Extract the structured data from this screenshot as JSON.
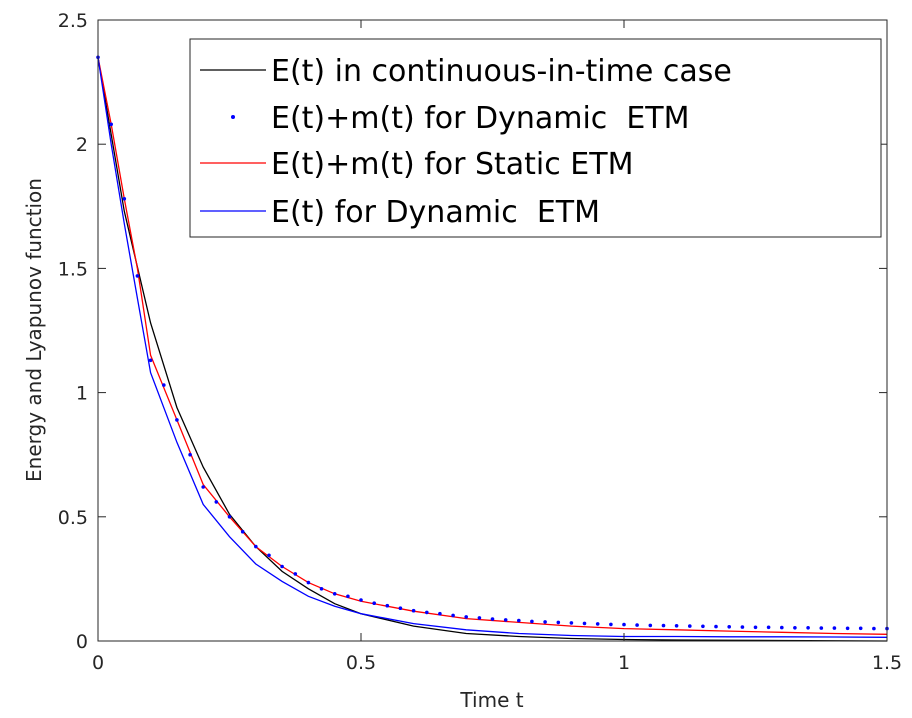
{
  "chart_data": {
    "type": "line",
    "title": "",
    "xlabel": "Time t",
    "ylabel": "Energy and Lyapunov function",
    "xlim": [
      0,
      1.5
    ],
    "ylim": [
      0,
      2.5
    ],
    "xticks": [
      0,
      0.5,
      1,
      1.5
    ],
    "xtick_labels": [
      "0",
      "0.5",
      "1",
      "1.5"
    ],
    "yticks": [
      0,
      0.5,
      1,
      1.5,
      2,
      2.5
    ],
    "ytick_labels": [
      "0",
      "0.5",
      "1",
      "1.5",
      "2",
      "2.5"
    ],
    "grid": false,
    "legend_position": "top-right",
    "series": [
      {
        "name": "E(t) in continuous-in-time case",
        "color": "#000000",
        "style": "line",
        "x": [
          0,
          0.05,
          0.1,
          0.15,
          0.2,
          0.25,
          0.3,
          0.35,
          0.4,
          0.45,
          0.5,
          0.6,
          0.7,
          0.8,
          0.9,
          1.0,
          1.1,
          1.2,
          1.3,
          1.4,
          1.5
        ],
        "y": [
          2.35,
          1.73,
          1.28,
          0.94,
          0.7,
          0.51,
          0.38,
          0.28,
          0.21,
          0.15,
          0.11,
          0.06,
          0.03,
          0.018,
          0.01,
          0.006,
          0.004,
          0.003,
          0.002,
          0.001,
          0.0
        ]
      },
      {
        "name": "E(t)+m(t) for Dynamic  ETM",
        "color": "#0000ff",
        "style": "dots",
        "x": [
          0,
          0.025,
          0.05,
          0.075,
          0.1,
          0.125,
          0.15,
          0.175,
          0.2,
          0.225,
          0.25,
          0.275,
          0.3,
          0.325,
          0.35,
          0.375,
          0.4,
          0.425,
          0.45,
          0.475,
          0.5,
          0.525,
          0.55,
          0.575,
          0.6,
          0.625,
          0.65,
          0.675,
          0.7,
          0.725,
          0.75,
          0.775,
          0.8,
          0.825,
          0.85,
          0.875,
          0.9,
          0.925,
          0.95,
          0.975,
          1.0,
          1.025,
          1.05,
          1.075,
          1.1,
          1.125,
          1.15,
          1.175,
          1.2,
          1.225,
          1.25,
          1.275,
          1.3,
          1.325,
          1.35,
          1.375,
          1.4,
          1.425,
          1.45,
          1.475,
          1.5
        ],
        "y": [
          2.35,
          2.08,
          1.78,
          1.47,
          1.13,
          1.03,
          0.89,
          0.75,
          0.62,
          0.56,
          0.5,
          0.44,
          0.38,
          0.345,
          0.3,
          0.27,
          0.235,
          0.21,
          0.19,
          0.18,
          0.165,
          0.152,
          0.142,
          0.132,
          0.122,
          0.115,
          0.11,
          0.103,
          0.097,
          0.093,
          0.088,
          0.085,
          0.082,
          0.079,
          0.077,
          0.075,
          0.073,
          0.071,
          0.069,
          0.067,
          0.066,
          0.064,
          0.063,
          0.062,
          0.061,
          0.06,
          0.059,
          0.058,
          0.057,
          0.056,
          0.055,
          0.055,
          0.054,
          0.053,
          0.053,
          0.052,
          0.052,
          0.051,
          0.051,
          0.05,
          0.05
        ]
      },
      {
        "name": "E(t)+m(t) for Static ETM",
        "color": "#ff0000",
        "style": "line",
        "x": [
          0,
          0.025,
          0.05,
          0.075,
          0.1,
          0.15,
          0.2,
          0.25,
          0.3,
          0.35,
          0.4,
          0.45,
          0.5,
          0.6,
          0.7,
          0.8,
          0.9,
          1.0,
          1.1,
          1.2,
          1.3,
          1.4,
          1.5
        ],
        "y": [
          2.35,
          2.08,
          1.78,
          1.5,
          1.15,
          0.89,
          0.63,
          0.5,
          0.38,
          0.3,
          0.235,
          0.19,
          0.16,
          0.12,
          0.09,
          0.075,
          0.06,
          0.05,
          0.045,
          0.04,
          0.035,
          0.03,
          0.027
        ]
      },
      {
        "name": "E(t) for Dynamic  ETM",
        "color": "#0000ff",
        "style": "line",
        "x": [
          0,
          0.025,
          0.05,
          0.075,
          0.1,
          0.15,
          0.2,
          0.25,
          0.3,
          0.35,
          0.4,
          0.45,
          0.5,
          0.6,
          0.7,
          0.8,
          0.9,
          1.0,
          1.1,
          1.2,
          1.3,
          1.4,
          1.5
        ],
        "y": [
          2.35,
          2.0,
          1.68,
          1.38,
          1.08,
          0.8,
          0.55,
          0.42,
          0.31,
          0.24,
          0.18,
          0.14,
          0.11,
          0.07,
          0.045,
          0.03,
          0.022,
          0.018,
          0.018,
          0.017,
          0.017,
          0.016,
          0.015
        ]
      }
    ]
  }
}
